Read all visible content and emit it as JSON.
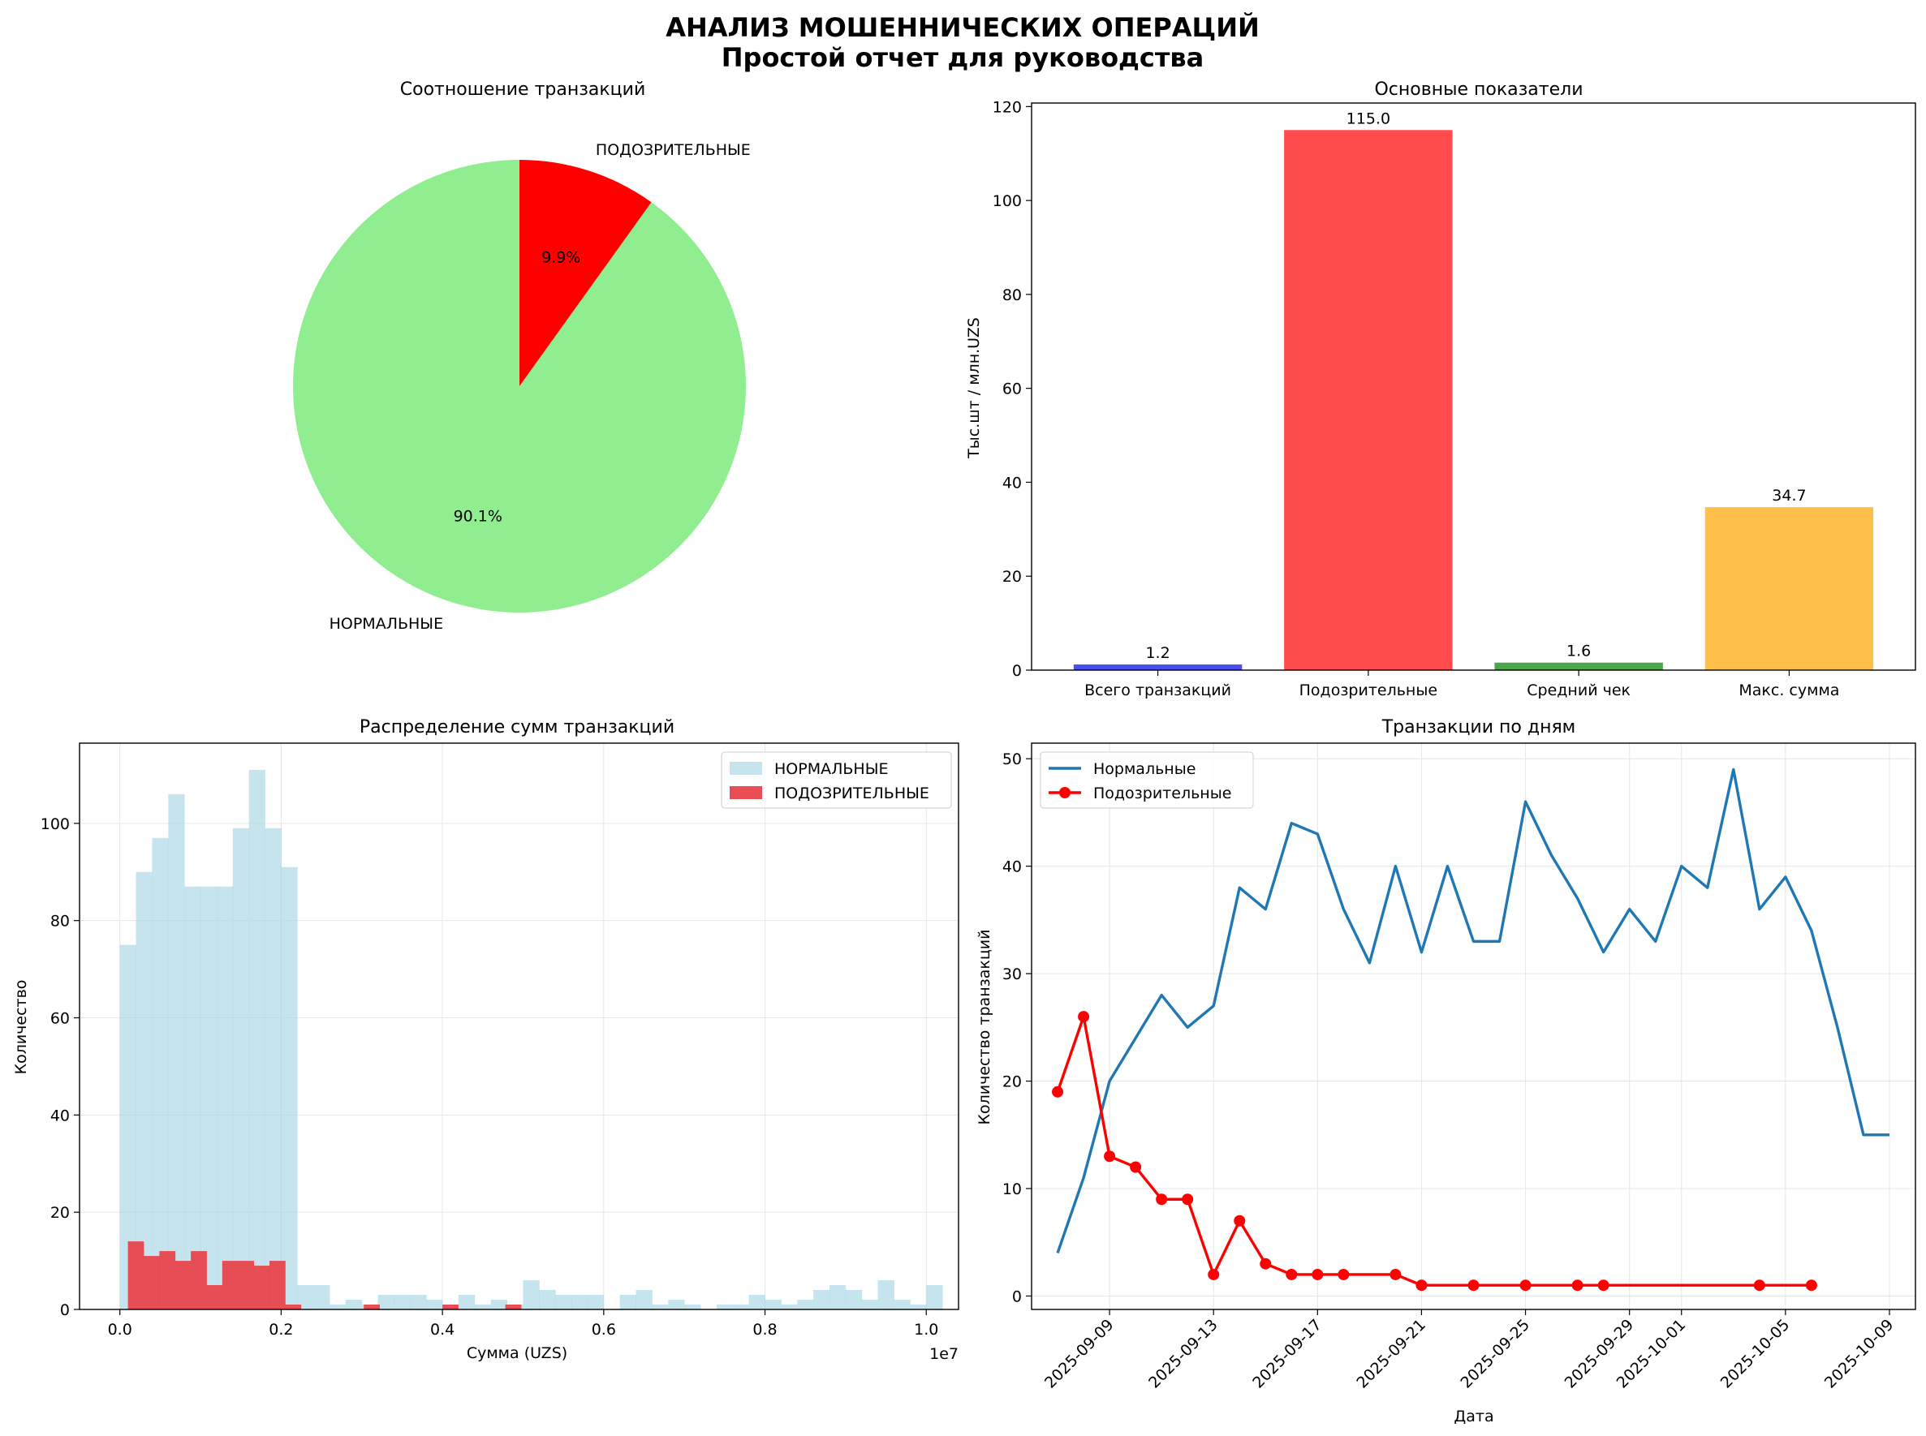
{
  "suptitle": "АНАЛИЗ МОШЕННИЧЕСКИХ ОПЕРАЦИЙ",
  "suptitle2": "Простой отчет для руководства",
  "chart_data": [
    {
      "type": "pie",
      "title": "Соотношение транзакций",
      "labels": [
        "НОРМАЛЬНЫЕ",
        "ПОДОЗРИТЕЛЬНЫЕ"
      ],
      "values": [
        90.1,
        9.9
      ],
      "pct_labels": [
        "90.1%",
        "9.9%"
      ],
      "colors": [
        "#90ee90",
        "#ff0000"
      ],
      "start_angle_deg": 90
    },
    {
      "type": "bar",
      "title": "Основные показатели",
      "ylabel": "Тыс.шт / млн.UZS",
      "categories": [
        "Всего транзакций",
        "Подозрительные",
        "Средний чек",
        "Макс. сумма"
      ],
      "values": [
        1.2,
        115.0,
        1.6,
        34.7
      ],
      "value_labels": [
        "1.2",
        "115.0",
        "1.6",
        "34.7"
      ],
      "colors": [
        "#4b4bf2",
        "#ff4b4b",
        "#4ba64b",
        "#ffbf4b"
      ],
      "ylim": [
        0,
        120.75
      ],
      "yticks": [
        0,
        20,
        40,
        60,
        80,
        100,
        120
      ]
    },
    {
      "type": "histogram",
      "title": "Распределение сумм транзакций",
      "xlabel": "Сумма (UZS)",
      "ylabel": "Количество",
      "x_offset_label": "1e7",
      "xlim": [
        -0.05,
        1.04
      ],
      "ylim": [
        0,
        116.5
      ],
      "xticks": [
        0.0,
        0.2,
        0.4,
        0.6,
        0.8,
        1.0
      ],
      "xtick_labels": [
        "0.0",
        "0.2",
        "0.4",
        "0.6",
        "0.8",
        "1.0"
      ],
      "yticks": [
        0,
        20,
        40,
        60,
        80,
        100
      ],
      "grid": true,
      "legend_position": "top-right",
      "series": [
        {
          "name": "НОРМАЛЬНЫЕ",
          "color": "#add8e6",
          "bin_start": 0.0,
          "bin_width": 0.02,
          "counts": [
            75,
            90,
            97,
            106,
            87,
            87,
            87,
            99,
            111,
            99,
            91,
            5,
            5,
            1,
            2,
            1,
            3,
            3,
            3,
            2,
            1,
            3,
            1,
            2,
            1,
            6,
            4,
            3,
            3,
            3,
            0,
            3,
            4,
            1,
            2,
            1,
            0,
            1,
            1,
            3,
            2,
            1,
            2,
            4,
            5,
            4,
            2,
            6,
            2,
            1,
            5
          ]
        },
        {
          "name": "ПОДОЗРИТЕЛЬНЫЕ",
          "color": "#e8454c",
          "bin_start": 0.01,
          "bin_width": 0.0195,
          "counts": [
            14,
            11,
            12,
            10,
            12,
            5,
            10,
            10,
            9,
            10,
            1,
            0,
            0,
            0,
            0,
            1,
            0,
            0,
            0,
            0,
            1,
            0,
            0,
            0,
            1,
            0,
            0,
            0,
            0,
            0,
            0,
            0,
            0,
            0,
            0,
            0,
            0,
            0,
            0,
            0,
            0,
            0,
            0,
            0,
            0,
            0,
            0,
            0
          ]
        }
      ]
    },
    {
      "type": "line",
      "title": "Транзакции по дням",
      "xlabel": "Дата",
      "ylabel": "Количество транзакций",
      "ylim": [
        -1.25,
        51.45
      ],
      "yticks": [
        0,
        10,
        20,
        30,
        40,
        50
      ],
      "xlim": [
        "2025-09-06",
        "2025-10-10"
      ],
      "xticks": [
        "2025-09-09",
        "2025-09-13",
        "2025-09-17",
        "2025-09-21",
        "2025-09-25",
        "2025-09-29",
        "2025-10-01",
        "2025-10-05",
        "2025-10-09"
      ],
      "grid": true,
      "legend_position": "top-left",
      "series": [
        {
          "name": "Нормальные",
          "color": "#1f77b4",
          "markers": false,
          "x": [
            "2025-09-07",
            "2025-09-08",
            "2025-09-09",
            "2025-09-10",
            "2025-09-11",
            "2025-09-12",
            "2025-09-13",
            "2025-09-14",
            "2025-09-15",
            "2025-09-16",
            "2025-09-17",
            "2025-09-18",
            "2025-09-19",
            "2025-09-20",
            "2025-09-21",
            "2025-09-22",
            "2025-09-23",
            "2025-09-24",
            "2025-09-25",
            "2025-09-26",
            "2025-09-27",
            "2025-09-28",
            "2025-09-29",
            "2025-09-30",
            "2025-10-01",
            "2025-10-02",
            "2025-10-03",
            "2025-10-04",
            "2025-10-05",
            "2025-10-06",
            "2025-10-07",
            "2025-10-08",
            "2025-10-09"
          ],
          "y": [
            4,
            11,
            20,
            24,
            28,
            25,
            27,
            38,
            36,
            44,
            43,
            36,
            31,
            40,
            32,
            40,
            33,
            33,
            46,
            41,
            37,
            32,
            36,
            33,
            40,
            38,
            49,
            36,
            39,
            34,
            25,
            15,
            15
          ]
        },
        {
          "name": "Подозрительные",
          "color": "#ff0000",
          "markers": true,
          "x": [
            "2025-09-07",
            "2025-09-08",
            "2025-09-09",
            "2025-09-10",
            "2025-09-11",
            "2025-09-12",
            "2025-09-13",
            "2025-09-14",
            "2025-09-15",
            "2025-09-16",
            "2025-09-17",
            "2025-09-18",
            "2025-09-20",
            "2025-09-21",
            "2025-09-23",
            "2025-09-25",
            "2025-09-27",
            "2025-09-28",
            "2025-10-04",
            "2025-10-06"
          ],
          "y": [
            19,
            26,
            13,
            12,
            9,
            9,
            2,
            7,
            3,
            2,
            2,
            2,
            2,
            1,
            1,
            1,
            1,
            1,
            1,
            1
          ]
        }
      ]
    }
  ]
}
